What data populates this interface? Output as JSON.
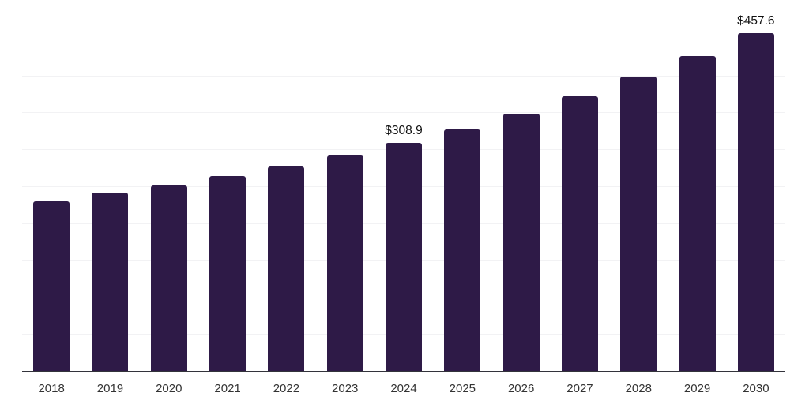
{
  "chart_data": {
    "type": "bar",
    "categories": [
      "2018",
      "2019",
      "2020",
      "2021",
      "2022",
      "2023",
      "2024",
      "2025",
      "2026",
      "2027",
      "2028",
      "2029",
      "2030"
    ],
    "values": [
      230.0,
      241.7,
      250.9,
      263.7,
      276.2,
      291.4,
      308.9,
      327.1,
      348.4,
      371.5,
      398.2,
      426.7,
      457.6
    ],
    "data_labels": [
      {
        "category": "2024",
        "text": "$308.9"
      },
      {
        "category": "2030",
        "text": "$457.6"
      }
    ],
    "ylim": [
      0,
      502
    ],
    "gridline_values": [
      50,
      100,
      150,
      200,
      250,
      300,
      350,
      400,
      450,
      500
    ],
    "grid": true,
    "legend": "none",
    "xlabel": "",
    "ylabel": "",
    "colors": {
      "bar": "#2e1a47",
      "axis_line": "#33333b",
      "gridline": "#f2f2f4",
      "data_label": "#111111",
      "tick_label": "#333333",
      "background": "#ffffff"
    }
  }
}
